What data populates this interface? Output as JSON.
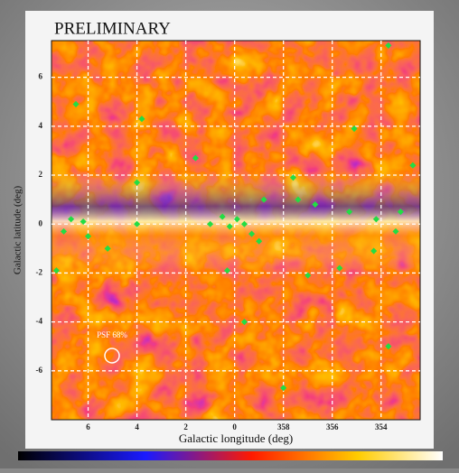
{
  "chart_data": {
    "type": "scatter",
    "title": "PRELIMINARY",
    "x_label": "Galactic longitude (deg)",
    "y_label": "Galactic latitude (deg)",
    "annotation": "PSF 68%",
    "xlim": [
      7.5,
      -7.6
    ],
    "ylim": [
      -8,
      7.5
    ],
    "xticks": [
      6,
      4,
      2,
      0,
      {
        "value": -2,
        "label": "358"
      },
      {
        "value": -4,
        "label": "356"
      },
      {
        "value": -6,
        "label": "354"
      }
    ],
    "yticks": [
      -6,
      -4,
      -2,
      0,
      2,
      4,
      6
    ],
    "grid": true,
    "series": [
      {
        "color": "#22dd44",
        "x": [
          6.5,
          3.8,
          4.0,
          -4.9,
          -7.3,
          -6.3,
          7.3,
          6.2,
          6.0,
          5.2,
          4.0,
          1.6,
          1.0,
          0.5,
          0.2,
          -0.1,
          -0.4,
          -0.7,
          -1.2,
          -1.0,
          -2.4,
          -2.6,
          -3.3,
          -4.7,
          -5.8,
          -6.6,
          -5.7,
          -3.0,
          -4.3,
          0.3,
          -0.4,
          -2.0,
          -6.3,
          -6.8,
          7.0,
          6.7
        ],
        "y": [
          4.9,
          4.3,
          1.7,
          3.9,
          2.4,
          7.3,
          -1.9,
          0.1,
          -0.5,
          -1.0,
          0,
          2.7,
          0,
          0.3,
          -0.1,
          0.2,
          0,
          -0.4,
          1.0,
          -0.7,
          1.9,
          1.0,
          0.8,
          0.5,
          0.2,
          -0.3,
          -1.1,
          -2.1,
          -1.8,
          -1.9,
          -4.0,
          -6.7,
          -5.0,
          0.5,
          -0.3,
          0.2
        ]
      }
    ]
  }
}
